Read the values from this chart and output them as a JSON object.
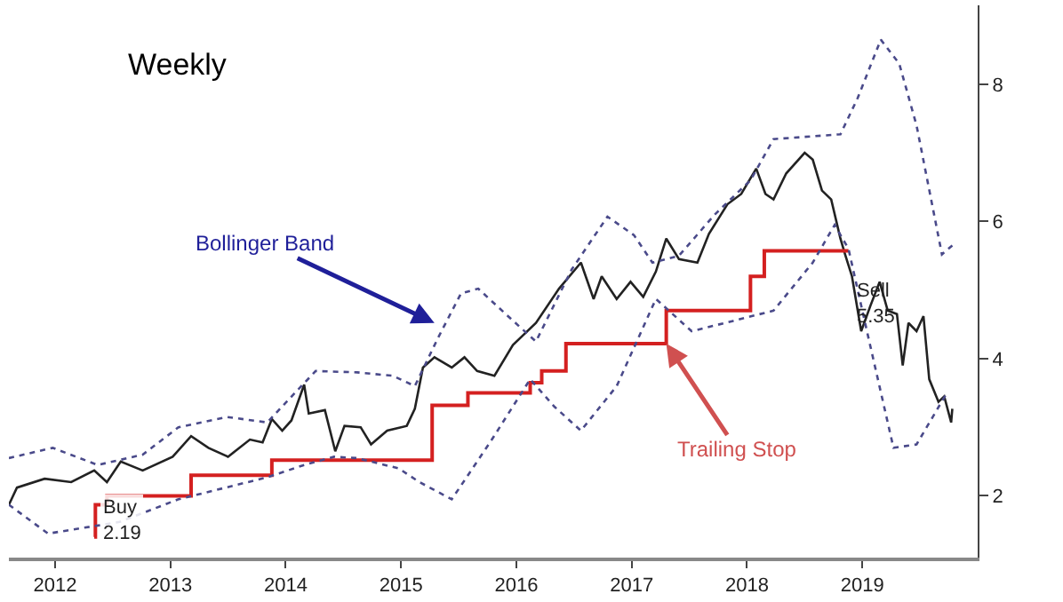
{
  "chart_data": {
    "type": "line",
    "title": "Weekly",
    "xlim": [
      2011.6,
      2020.0
    ],
    "xticks": [
      2012,
      2013,
      2014,
      2015,
      2016,
      2017,
      2018,
      2019
    ],
    "ylim": [
      1.1,
      9.15
    ],
    "yticks": [
      2,
      4,
      6,
      8
    ],
    "marker": "none",
    "series": [
      {
        "type": "line",
        "color": "#222222",
        "line_style": "solid",
        "x": [
          2011.6,
          2011.67,
          2011.91,
          2012.14,
          2012.34,
          2012.45,
          2012.57,
          2012.76,
          2013.02,
          2013.18,
          2013.33,
          2013.5,
          2013.69,
          2013.8,
          2013.88,
          2013.97,
          2014.05,
          2014.16,
          2014.2,
          2014.34,
          2014.43,
          2014.51,
          2014.65,
          2014.74,
          2014.88,
          2015.05,
          2015.12,
          2015.19,
          2015.29,
          2015.44,
          2015.55,
          2015.66,
          2015.81,
          2015.97,
          2016.17,
          2016.37,
          2016.56,
          2016.67,
          2016.74,
          2016.87,
          2016.99,
          2017.1,
          2017.21,
          2017.3,
          2017.41,
          2017.57,
          2017.67,
          2017.83,
          2017.95,
          2018.08,
          2018.16,
          2018.23,
          2018.34,
          2018.5,
          2018.57,
          2018.65,
          2018.73,
          2018.81,
          2018.85,
          2018.91,
          2018.99,
          2019.07,
          2019.15,
          2019.22,
          2019.3,
          2019.35,
          2019.4,
          2019.47,
          2019.53,
          2019.58,
          2019.66,
          2019.71,
          2019.77,
          2019.78
        ],
        "values": [
          1.87,
          2.12,
          2.25,
          2.2,
          2.37,
          2.2,
          2.5,
          2.37,
          2.57,
          2.87,
          2.7,
          2.57,
          2.82,
          2.78,
          3.12,
          2.95,
          3.1,
          3.62,
          3.2,
          3.25,
          2.65,
          3.02,
          3.0,
          2.75,
          2.95,
          3.02,
          3.27,
          3.87,
          4.02,
          3.87,
          4.02,
          3.82,
          3.75,
          4.2,
          4.52,
          5.02,
          5.4,
          4.87,
          5.2,
          4.87,
          5.12,
          4.9,
          5.27,
          5.75,
          5.45,
          5.4,
          5.82,
          6.25,
          6.4,
          6.77,
          6.4,
          6.32,
          6.7,
          7.0,
          6.9,
          6.45,
          6.32,
          5.75,
          5.52,
          5.2,
          4.4,
          4.77,
          5.12,
          4.7,
          4.65,
          3.9,
          4.52,
          4.4,
          4.62,
          3.7,
          3.37,
          3.45,
          3.07,
          3.27
        ]
      },
      {
        "type": "step",
        "color": "#d42020",
        "line_style": "solid",
        "x": [
          2012.34,
          2012.35,
          2012.45,
          2013.18,
          2013.88,
          2015.27,
          2015.58,
          2016.12,
          2016.22,
          2016.43,
          2017.3,
          2018.03,
          2018.15,
          2018.88
        ],
        "values": [
          1.4,
          1.87,
          2.0,
          2.3,
          2.52,
          3.32,
          3.5,
          3.65,
          3.82,
          4.22,
          4.7,
          5.2,
          5.57,
          5.57
        ]
      },
      {
        "type": "line",
        "color": "#4a4a8a",
        "line_style": "dotted",
        "x": [
          2011.6,
          2011.98,
          2012.37,
          2012.76,
          2013.07,
          2013.49,
          2013.84,
          2014.08,
          2014.26,
          2014.62,
          2014.93,
          2015.12,
          2015.32,
          2015.52,
          2015.67,
          2015.94,
          2016.17,
          2016.48,
          2016.79,
          2017.02,
          2017.18,
          2017.41,
          2017.72,
          2018.03,
          2018.23,
          2018.81,
          2018.96,
          2019.16,
          2019.32,
          2019.47,
          2019.69,
          2019.78
        ],
        "values": [
          2.55,
          2.7,
          2.45,
          2.6,
          3.0,
          3.15,
          3.07,
          3.5,
          3.82,
          3.8,
          3.75,
          3.6,
          4.3,
          4.95,
          5.02,
          4.6,
          4.25,
          5.3,
          6.07,
          5.8,
          5.4,
          5.5,
          6.1,
          6.6,
          7.2,
          7.27,
          7.8,
          8.65,
          8.3,
          7.4,
          5.52,
          5.65
        ]
      },
      {
        "type": "line",
        "color": "#4a4a8a",
        "line_style": "dotted",
        "x": [
          2011.6,
          2011.94,
          2012.56,
          2013.07,
          2013.84,
          2014.16,
          2014.42,
          2014.62,
          2014.98,
          2015.16,
          2015.44,
          2015.78,
          2016.12,
          2016.33,
          2016.56,
          2016.87,
          2017.21,
          2017.52,
          2017.88,
          2018.23,
          2018.57,
          2018.76,
          2018.88,
          2019.04,
          2019.27,
          2019.47,
          2019.74
        ],
        "values": [
          1.87,
          1.45,
          1.62,
          1.95,
          2.27,
          2.45,
          2.57,
          2.55,
          2.4,
          2.2,
          1.95,
          2.8,
          3.7,
          3.3,
          2.95,
          3.6,
          4.87,
          4.4,
          4.55,
          4.7,
          5.4,
          5.95,
          5.6,
          4.4,
          2.7,
          2.75,
          3.52
        ]
      }
    ],
    "annotations": [
      {
        "text": "Bollinger Band",
        "x": 2015.29,
        "y": 4.52
      },
      {
        "text": "Trailing Stop",
        "x": 2017.3,
        "y": 4.22
      },
      {
        "text": "Buy\n2.19",
        "x": 2012.34,
        "y": 2.19
      },
      {
        "text": "Sell\n5.35",
        "x": 2018.88,
        "y": 5.35
      }
    ]
  }
}
